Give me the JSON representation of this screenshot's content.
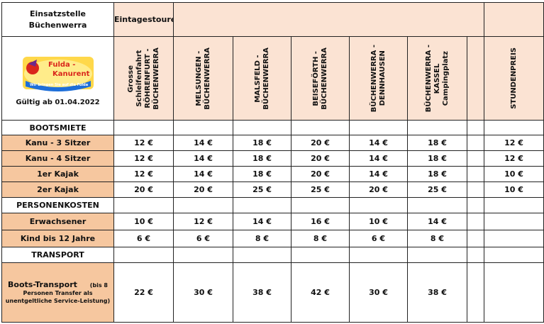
{
  "header": {
    "station_line1": "Einsatzstelle",
    "station_line2": "Büchenwerra",
    "day_tours": "Eintagestouren",
    "logo_text": "Fulda-Kanurent",
    "logo_slogan": "Wir bringen Sie auf die Fulda",
    "valid_from": "Gültig ab 01.04.2022"
  },
  "routes": [
    "Grosse\nSchleifenfahrt\nRÖHRENFURT -\nBÜCHENWERRA",
    "MELSUNGEN -\nBÜCHENWERRA",
    "MALSFELD -\nBÜCHENWERRA",
    "BEISEFÖRTH -\nBÜCHENWERRA",
    "BÜCHENWERRA -\nDENNHAUSEN",
    "BÜCHENWERRA -\nKASSEL\nCampingplatz",
    "",
    "STUNDENPREIS"
  ],
  "sections": {
    "boats": "BOOTSMIETE",
    "persons": "PERSONENKOSTEN",
    "transport": "TRANSPORT"
  },
  "boat_rows": [
    {
      "label": "Kanu - 3 Sitzer",
      "values": [
        "12 €",
        "14 €",
        "18 €",
        "20 €",
        "14 €",
        "18 €",
        "",
        "12 €"
      ]
    },
    {
      "label": "Kanu - 4 Sitzer",
      "values": [
        "12 €",
        "14 €",
        "18 €",
        "20 €",
        "14 €",
        "18 €",
        "",
        "12 €"
      ]
    },
    {
      "label": "1er Kajak",
      "values": [
        "12 €",
        "14 €",
        "18 €",
        "20 €",
        "14 €",
        "18 €",
        "",
        "10 €"
      ]
    },
    {
      "label": "2er Kajak",
      "values": [
        "20 €",
        "20 €",
        "25 €",
        "25 €",
        "20 €",
        "25 €",
        "",
        "10 €"
      ]
    }
  ],
  "person_rows": [
    {
      "label": "Erwachsener",
      "values": [
        "10 €",
        "12 €",
        "14 €",
        "16 €",
        "10 €",
        "14 €",
        "",
        ""
      ]
    },
    {
      "label": "Kind bis 12 Jahre",
      "values": [
        "6 €",
        "6 €",
        "8 €",
        "8 €",
        "6 €",
        "8 €",
        "",
        ""
      ]
    }
  ],
  "transport_row": {
    "label_main": "Boots-Transport",
    "label_note_inline": "(bis 8",
    "label_note": "Personen Transfer als unentgeltliche Service-Leistung)",
    "values": [
      "22 €",
      "30 €",
      "38 €",
      "42 €",
      "30 €",
      "38 €",
      "",
      ""
    ]
  },
  "colors": {
    "peach": "#fbe3d3",
    "orange": "#f6c79f",
    "border": "#222222"
  }
}
